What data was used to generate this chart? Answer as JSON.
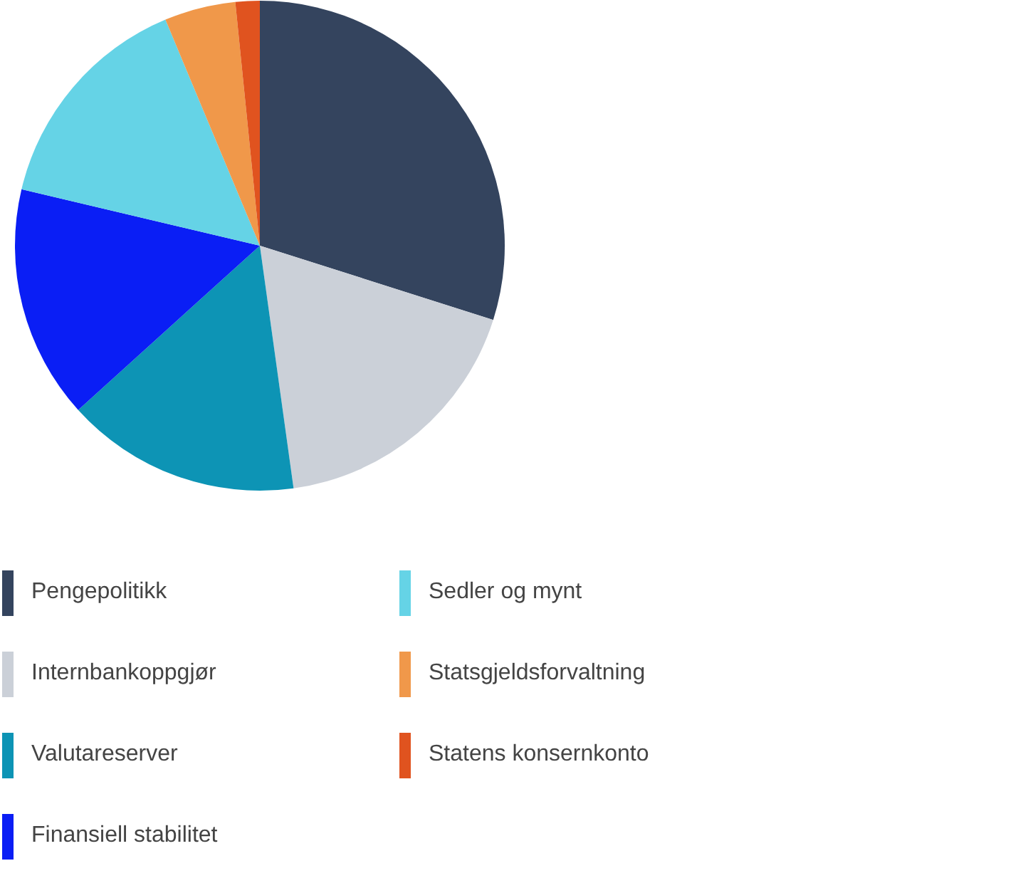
{
  "chart_data": {
    "type": "pie",
    "categories": [
      "Pengepolitikk",
      "Internbankoppgjør",
      "Valutareserver",
      "Finansiell stabilitet",
      "Sedler og mynt",
      "Statsgjeldsforvaltning",
      "Statens konsernkonto"
    ],
    "values": [
      29.9,
      17.9,
      15.5,
      15.4,
      15.0,
      4.7,
      1.6
    ],
    "colors": [
      "#34445e",
      "#cbd0d8",
      "#0d94b5",
      "#0a1ef5",
      "#65d3e6",
      "#f0984a",
      "#e0531f"
    ],
    "legend": "bottom"
  }
}
